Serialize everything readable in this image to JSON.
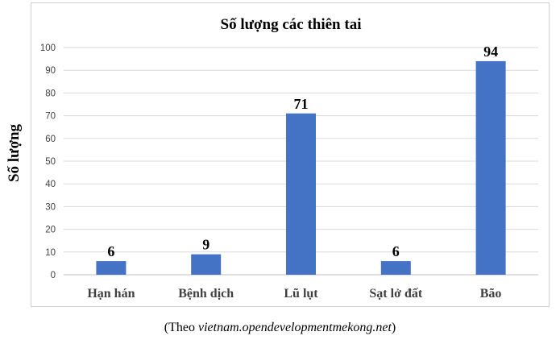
{
  "chart_data": {
    "type": "bar",
    "title": "Số lượng các thiên tai",
    "ylabel": "Số lượng",
    "xlabel": "",
    "categories": [
      "Hạn hán",
      "Bệnh dịch",
      "Lũ lụt",
      "Sạt lở đất",
      "Bão"
    ],
    "values": [
      6,
      9,
      71,
      6,
      94
    ],
    "data_labels": [
      "6",
      "9",
      "71",
      "6",
      "94"
    ],
    "ylim": [
      0,
      100
    ],
    "yticks": [
      "0",
      "10",
      "20",
      "30",
      "40",
      "50",
      "60",
      "70",
      "80",
      "90",
      "100"
    ],
    "grid": true,
    "legend": "none",
    "bar_color": "#4472c4",
    "grid_color": "#d9d9d9"
  },
  "source_note": {
    "prefix": "(Theo ",
    "url": "vietnam.opendevelopmentmekong.net",
    "suffix": ")"
  }
}
